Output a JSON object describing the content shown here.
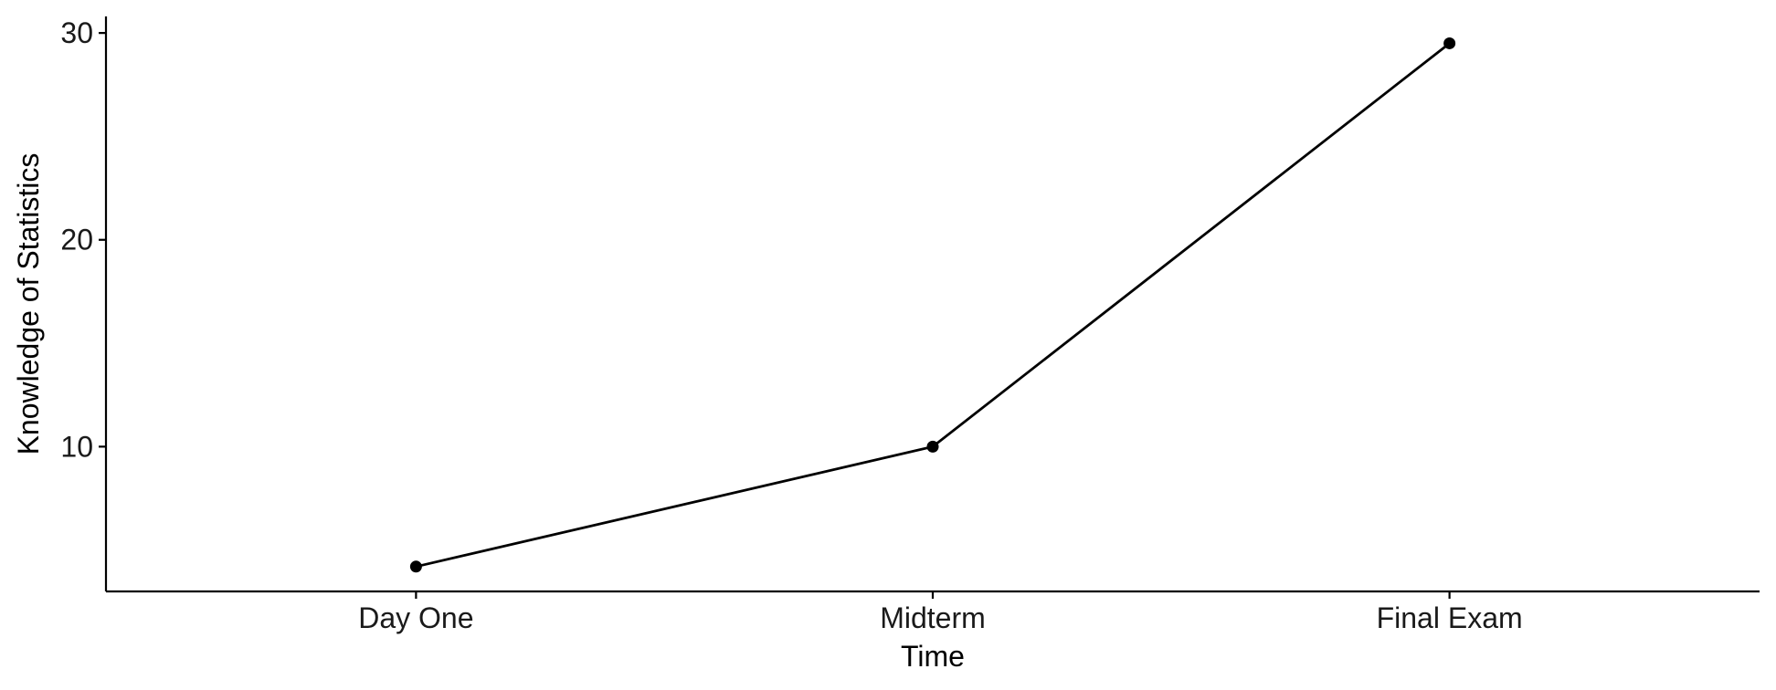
{
  "chart_data": {
    "type": "line",
    "categories": [
      "Day One",
      "Midterm",
      "Final Exam"
    ],
    "values": [
      4.2,
      10.0,
      29.5
    ],
    "xlabel": "Time",
    "ylabel": "Knowledge of Statistics",
    "ylim": [
      3,
      30.8
    ],
    "yticks": [
      10,
      20,
      30
    ],
    "grid": false,
    "legend": "none",
    "colors": {
      "line": "#000000",
      "point": "#000000",
      "axis": "#000000"
    }
  }
}
